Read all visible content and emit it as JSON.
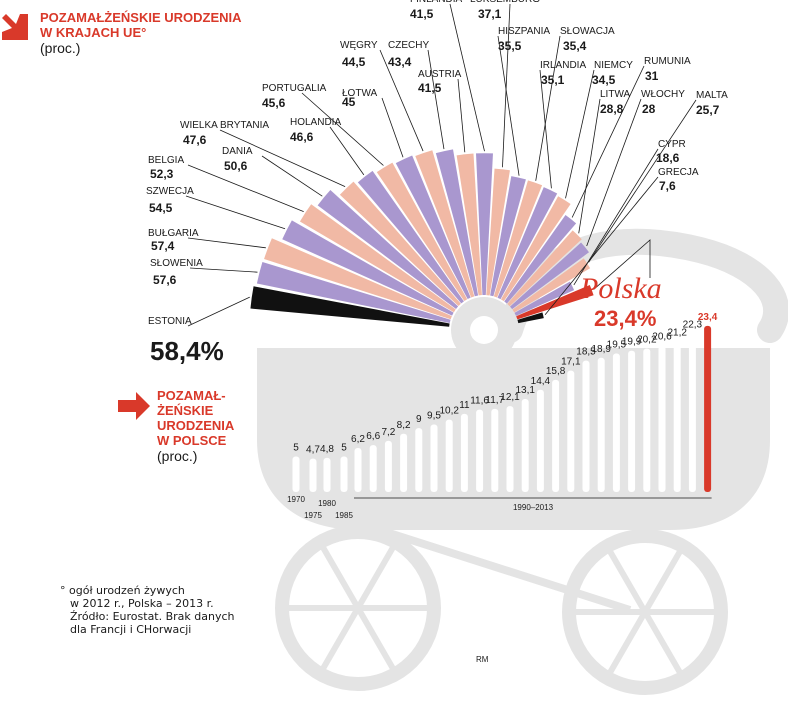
{
  "header_eu": {
    "line1": "POZAMAŁŻEŃSKIE URODZENIA",
    "line2": "W KRAJACH UE°",
    "unit": "(proc.)"
  },
  "header_pl": {
    "line1": "POZAMAŁ-",
    "line2": "ŻEŃSKIE",
    "line3": "URODZENIA",
    "line4": "W POLSCE",
    "unit": "(proc.)"
  },
  "polska": {
    "name": "Polska",
    "value": "23,4%"
  },
  "footnote": [
    "° ogół urodzeń żywych",
    "w 2012 r., Polska – 2013 r.",
    "Źródło: Eurostat. Brak danych",
    "dla Francji i CHorwacji"
  ],
  "author": "RM",
  "colors": {
    "purple": "#a997cf",
    "peach": "#f1b9a5",
    "black": "#111111",
    "red": "#d9392a",
    "gray": "#e4e4e4"
  },
  "chart_data": [
    {
      "type": "bar",
      "subtype": "fan",
      "categories": [
        "ESTONIA",
        "SŁOWENIA",
        "BUŁGARIA",
        "SZWECJA",
        "BELGIA",
        "DANIA",
        "WIELKA BRYTANIA",
        "HOLANDIA",
        "PORTUGALIA",
        "ŁOTWA",
        "WĘGRY",
        "CZECHY",
        "AUSTRIA",
        "FINLANDIA",
        "LUKSEMBURG",
        "HISZPANIA",
        "SŁOWACJA",
        "IRLANDIA",
        "NIEMCY",
        "RUMUNIA",
        "LITWA",
        "WŁOCHY",
        "MALTA",
        "CYPR",
        "Polska",
        "GRECJA"
      ],
      "values": [
        58.4,
        57.6,
        57.4,
        54.5,
        52.3,
        50.6,
        47.6,
        46.6,
        45.6,
        45,
        44.5,
        43.4,
        41.5,
        41.5,
        37.1,
        35.5,
        35.4,
        35.1,
        34.5,
        31,
        28.8,
        28,
        25.7,
        18.6,
        23.4,
        7.6
      ],
      "labels": [
        "58,4%",
        "57,6",
        "57,4",
        "54,5",
        "52,3",
        "50,6",
        "47,6",
        "46,6",
        "45,6",
        "45",
        "44,5",
        "43,4",
        "41,5",
        "41,5",
        "37,1",
        "35,5",
        "35,4",
        "35,1",
        "34,5",
        "31",
        "28,8",
        "28",
        "25,7",
        "18,6",
        "23,4%",
        "7,6"
      ],
      "highlight": "Polska"
    },
    {
      "type": "bar",
      "values": [
        5,
        4.7,
        4.8,
        5,
        6.2,
        6.6,
        7.2,
        8.2,
        9,
        9.5,
        10.2,
        11,
        11.6,
        11.7,
        12.1,
        13.1,
        14.4,
        15.8,
        17.1,
        18.5,
        18.9,
        19.5,
        19.9,
        20.2,
        20.6,
        21.2,
        22.3,
        23.4
      ],
      "labels": [
        "5",
        "4,7",
        "4,8",
        "5",
        "6,2",
        "6,6",
        "7,2",
        "8,2",
        "9",
        "9,5",
        "10,2",
        "11",
        "11,6",
        "11,7",
        "12,1",
        "13,1",
        "14,4",
        "15,8",
        "17,1",
        "18,5",
        "18,9",
        "19,5",
        "19,9",
        "20,2",
        "20,6",
        "21,2",
        "22,3",
        "23,4"
      ],
      "years": [
        "1970",
        "1975",
        "1980",
        "1985",
        "1990–2013"
      ],
      "highlight_last": true
    }
  ]
}
